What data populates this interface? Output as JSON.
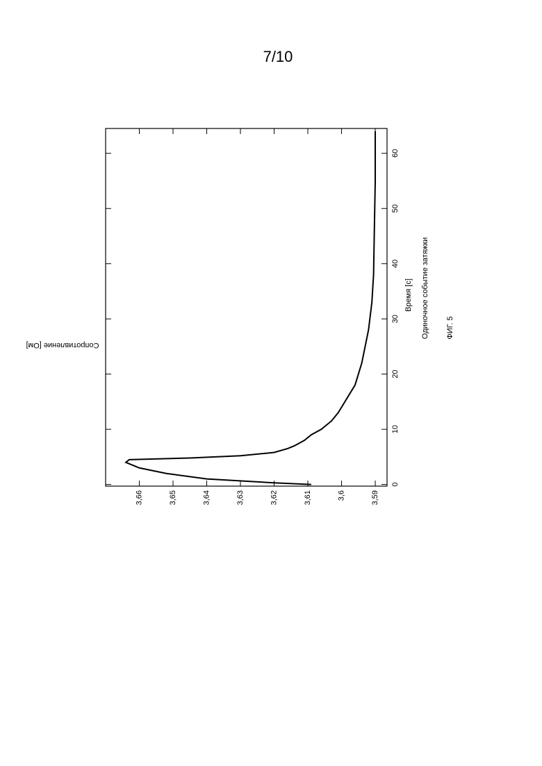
{
  "page_number": "7/10",
  "chart_data": {
    "type": "line",
    "xlabel": "Время [с]",
    "ylabel": "Сопротивление [Ом]",
    "caption": "Одиночное событие затяжки",
    "figure_label": "ФИГ. 5",
    "x": [
      0,
      0.3,
      1,
      2,
      3,
      4,
      4.5,
      4.8,
      5.2,
      5.8,
      6.5,
      7,
      8,
      9,
      10,
      11.5,
      13,
      14,
      16,
      18,
      20,
      22,
      25,
      28,
      33,
      38,
      45,
      55,
      64
    ],
    "series": [
      {
        "color": "#000000",
        "values": [
          3.609,
          3.62,
          3.64,
          3.652,
          3.66,
          3.664,
          3.663,
          3.645,
          3.63,
          3.62,
          3.616,
          3.614,
          3.611,
          3.609,
          3.606,
          3.603,
          3.601,
          3.6,
          3.598,
          3.596,
          3.595,
          3.594,
          3.593,
          3.592,
          3.591,
          3.5905,
          3.5903,
          3.59,
          3.59
        ]
      }
    ],
    "xlim": [
      -0.3,
      64.5
    ],
    "xticks": [
      0,
      10,
      20,
      30,
      40,
      50,
      60
    ],
    "ylim": [
      3.5865,
      3.67
    ],
    "yticks": [
      {
        "value": 3.59,
        "label": "3,59"
      },
      {
        "value": 3.6,
        "label": "3,6"
      },
      {
        "value": 3.61,
        "label": "3,61"
      },
      {
        "value": 3.62,
        "label": "3,62"
      },
      {
        "value": 3.63,
        "label": "3,63"
      },
      {
        "value": 3.64,
        "label": "3,64"
      },
      {
        "value": 3.65,
        "label": "3,65"
      },
      {
        "value": 3.66,
        "label": "3,66"
      }
    ]
  }
}
